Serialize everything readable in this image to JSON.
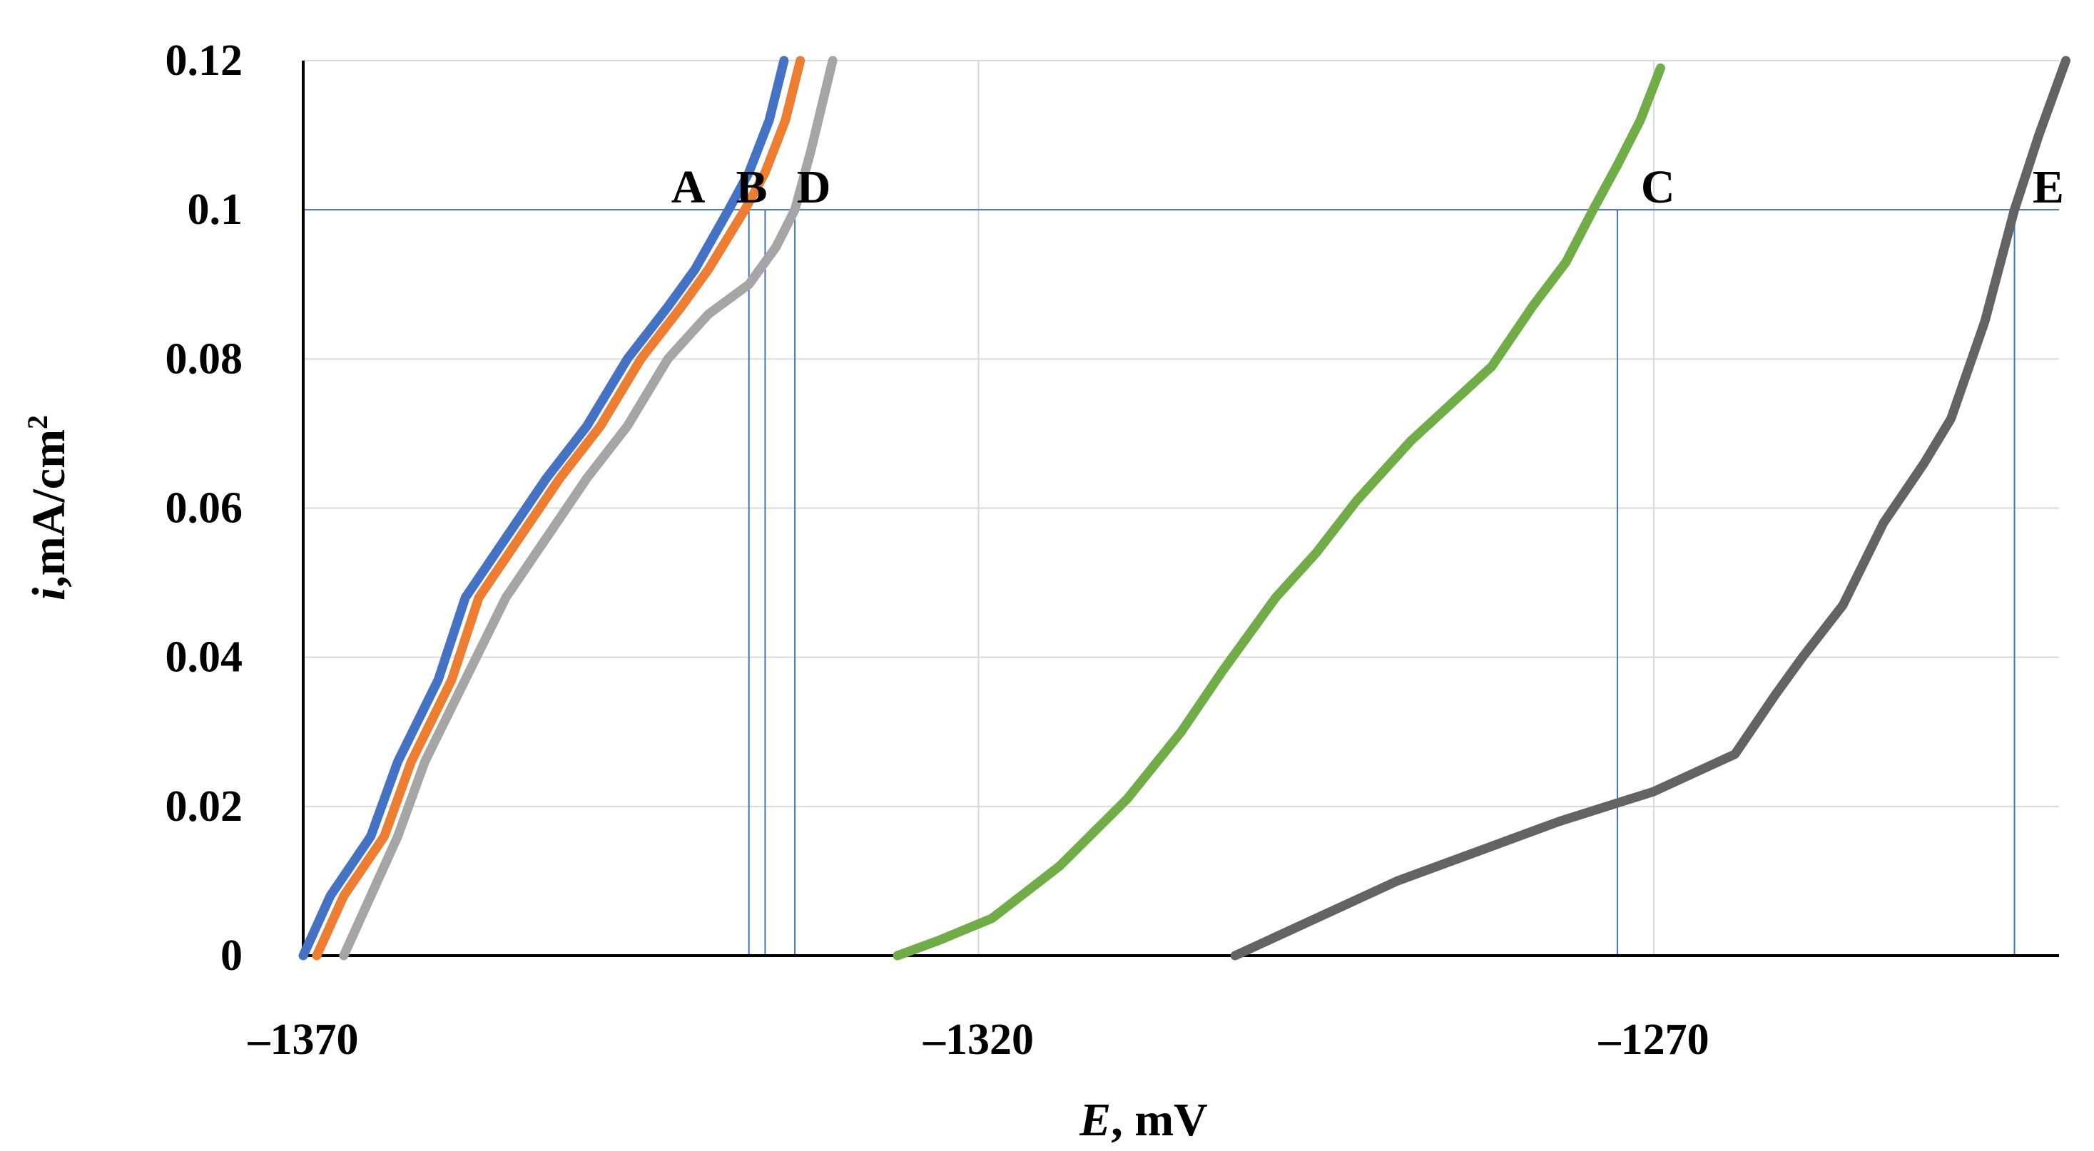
{
  "chart_data": {
    "type": "line",
    "xlabel_italic": "E",
    "xlabel_rest": ", mV",
    "ylabel_italic": "i",
    "ylabel_rest": ",mA/cm",
    "ylabel_sup": "2",
    "xlim": [
      -1370,
      -1240
    ],
    "ylim": [
      0,
      0.12
    ],
    "xticks": [
      -1370,
      -1320,
      -1270
    ],
    "xtick_labels": [
      "–1370",
      "–1320",
      "–1270"
    ],
    "yticks": [
      0,
      0.02,
      0.04,
      0.06,
      0.08,
      0.1,
      0.12
    ],
    "ytick_labels": [
      "0",
      "0.02",
      "0.04",
      "0.06",
      "0.08",
      "0.1",
      "0.12"
    ],
    "xgrid": [
      -1320,
      -1270
    ],
    "grid": true,
    "reference_lines": {
      "horizontal_i": 0.1,
      "vertical_E": [
        -1337,
        -1335.8,
        -1333.6,
        -1272.7,
        -1243.3
      ]
    },
    "series": [
      {
        "label": "A",
        "color": "#4472c4",
        "x": [
          -1370,
          -1368,
          -1365,
          -1363,
          -1360,
          -1358,
          -1355,
          -1352,
          -1349,
          -1346,
          -1343,
          -1341,
          -1338.5,
          -1337,
          -1335.5,
          -1334.4
        ],
        "y": [
          0,
          0.008,
          0.016,
          0.026,
          0.037,
          0.048,
          0.056,
          0.064,
          0.071,
          0.08,
          0.087,
          0.092,
          0.1,
          0.105,
          0.112,
          0.12
        ]
      },
      {
        "label": "B",
        "color": "#ed7d31",
        "x": [
          -1369,
          -1367,
          -1364,
          -1362,
          -1359,
          -1357,
          -1354,
          -1351,
          -1348,
          -1345,
          -1342,
          -1340,
          -1337.3,
          -1335.8,
          -1334.3,
          -1333.2
        ],
        "y": [
          0,
          0.008,
          0.016,
          0.026,
          0.037,
          0.048,
          0.056,
          0.064,
          0.071,
          0.08,
          0.087,
          0.092,
          0.1,
          0.105,
          0.112,
          0.12
        ]
      },
      {
        "label": "D",
        "color": "#a5a5a5",
        "x": [
          -1367,
          -1365,
          -1363,
          -1361,
          -1358,
          -1355,
          -1352,
          -1349,
          -1346,
          -1343,
          -1340,
          -1337,
          -1335,
          -1333.6,
          -1332.4,
          -1330.8
        ],
        "y": [
          0,
          0.008,
          0.016,
          0.026,
          0.037,
          0.048,
          0.056,
          0.064,
          0.071,
          0.08,
          0.086,
          0.09,
          0.095,
          0.1,
          0.108,
          0.12
        ]
      },
      {
        "label": "C",
        "color": "#70ad47",
        "x": [
          -1326,
          -1323,
          -1319,
          -1314,
          -1309,
          -1305,
          -1302,
          -1298,
          -1295,
          -1292,
          -1288,
          -1285,
          -1282,
          -1279,
          -1276.5,
          -1274.5,
          -1272.7,
          -1271,
          -1269.5
        ],
        "y": [
          0,
          0.002,
          0.005,
          0.012,
          0.021,
          0.03,
          0.038,
          0.048,
          0.054,
          0.061,
          0.069,
          0.074,
          0.079,
          0.087,
          0.093,
          0.1,
          0.106,
          0.112,
          0.119
        ]
      },
      {
        "label": "E",
        "color": "#636363",
        "x": [
          -1301,
          -1295,
          -1289,
          -1283,
          -1277,
          -1270,
          -1264,
          -1261,
          -1259,
          -1256,
          -1253,
          -1250,
          -1248,
          -1245.5,
          -1243.3,
          -1241.5,
          -1239.5
        ],
        "y": [
          0,
          0.005,
          0.01,
          0.014,
          0.018,
          0.022,
          0.027,
          0.035,
          0.04,
          0.047,
          0.058,
          0.066,
          0.072,
          0.085,
          0.1,
          0.11,
          0.12
        ]
      }
    ]
  }
}
